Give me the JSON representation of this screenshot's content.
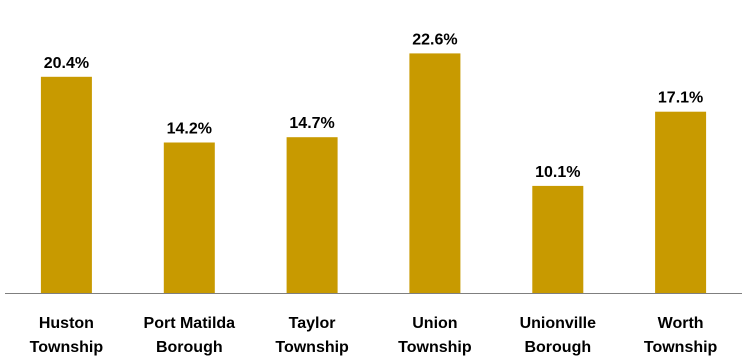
{
  "chart_data": {
    "type": "bar",
    "categories": [
      [
        "Huston",
        "Township"
      ],
      [
        "Port Matilda",
        "Borough"
      ],
      [
        "Taylor",
        "Township"
      ],
      [
        "Union",
        "Township"
      ],
      [
        "Unionville",
        "Borough"
      ],
      [
        "Worth",
        "Township"
      ]
    ],
    "values": [
      20.4,
      14.2,
      14.7,
      22.6,
      10.1,
      17.1
    ],
    "value_labels": [
      "20.4%",
      "14.2%",
      "14.7%",
      "22.6%",
      "10.1%",
      "17.1%"
    ],
    "title": "",
    "xlabel": "",
    "ylabel": "",
    "ylim": [
      0,
      25
    ],
    "grid": false,
    "bar_color": "#C89A00",
    "axis_color": "#7F7F7F"
  }
}
